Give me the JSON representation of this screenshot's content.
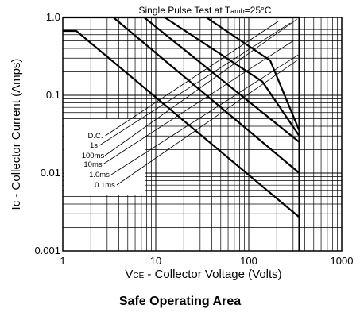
{
  "caption": "Safe Operating Area",
  "chart_data": {
    "type": "line",
    "title": "Single Pulse Test at Tamb=25°C",
    "title_parts": [
      "Single Pulse Test at T",
      "amb",
      "=25°C"
    ],
    "xlabel": "VCE - Collector Voltage (Volts)",
    "xlabel_parts": [
      "V",
      "CE",
      " - Collector Voltage (Volts)"
    ],
    "ylabel": "Ic - Collector Current (Amps)",
    "x_scale": "log",
    "y_scale": "log",
    "xlim": [
      1,
      1000
    ],
    "ylim": [
      0.001,
      1.0
    ],
    "x_ticks": [
      1,
      10,
      100,
      1000
    ],
    "x_tick_labels": [
      "1",
      "10",
      "100",
      "1000"
    ],
    "y_ticks": [
      0.001,
      0.01,
      0.1,
      1.0
    ],
    "y_tick_labels": [
      "0.001",
      "0.01",
      "0.1",
      "1.0"
    ],
    "grid": true,
    "voltage_limit_v": 350,
    "series": [
      {
        "name": "D.C.",
        "points": [
          [
            1,
            0.67
          ],
          [
            1.4,
            0.67
          ],
          [
            350,
            0.0027
          ],
          [
            350,
            0.001
          ]
        ]
      },
      {
        "name": "1s",
        "points": [
          [
            3.5,
            1.0
          ],
          [
            350,
            0.01
          ]
        ]
      },
      {
        "name": "100ms",
        "points": [
          [
            7.5,
            1.0
          ],
          [
            350,
            0.025
          ]
        ]
      },
      {
        "name": "10ms",
        "points": [
          [
            12.5,
            1.0
          ],
          [
            140,
            0.15
          ],
          [
            350,
            0.03
          ]
        ]
      },
      {
        "name": "1.0ms",
        "points": [
          [
            35,
            1.0
          ],
          [
            170,
            0.28
          ],
          [
            350,
            0.035
          ]
        ]
      },
      {
        "name": "0.1ms",
        "points": [
          [
            1,
            1.0
          ],
          [
            350,
            1.0
          ]
        ]
      }
    ],
    "label_leaders": [
      {
        "label": "D.C.",
        "to": [
          210,
          0.9
        ]
      },
      {
        "label": "1s",
        "to": [
          280,
          0.85
        ]
      },
      {
        "label": "100ms",
        "to": [
          330,
          0.95
        ]
      },
      {
        "label": "10ms",
        "to": [
          300,
          0.5
        ]
      },
      {
        "label": "1.0ms",
        "to": [
          340,
          0.33
        ]
      },
      {
        "label": "0.1ms",
        "to": [
          330,
          0.28
        ]
      }
    ]
  }
}
